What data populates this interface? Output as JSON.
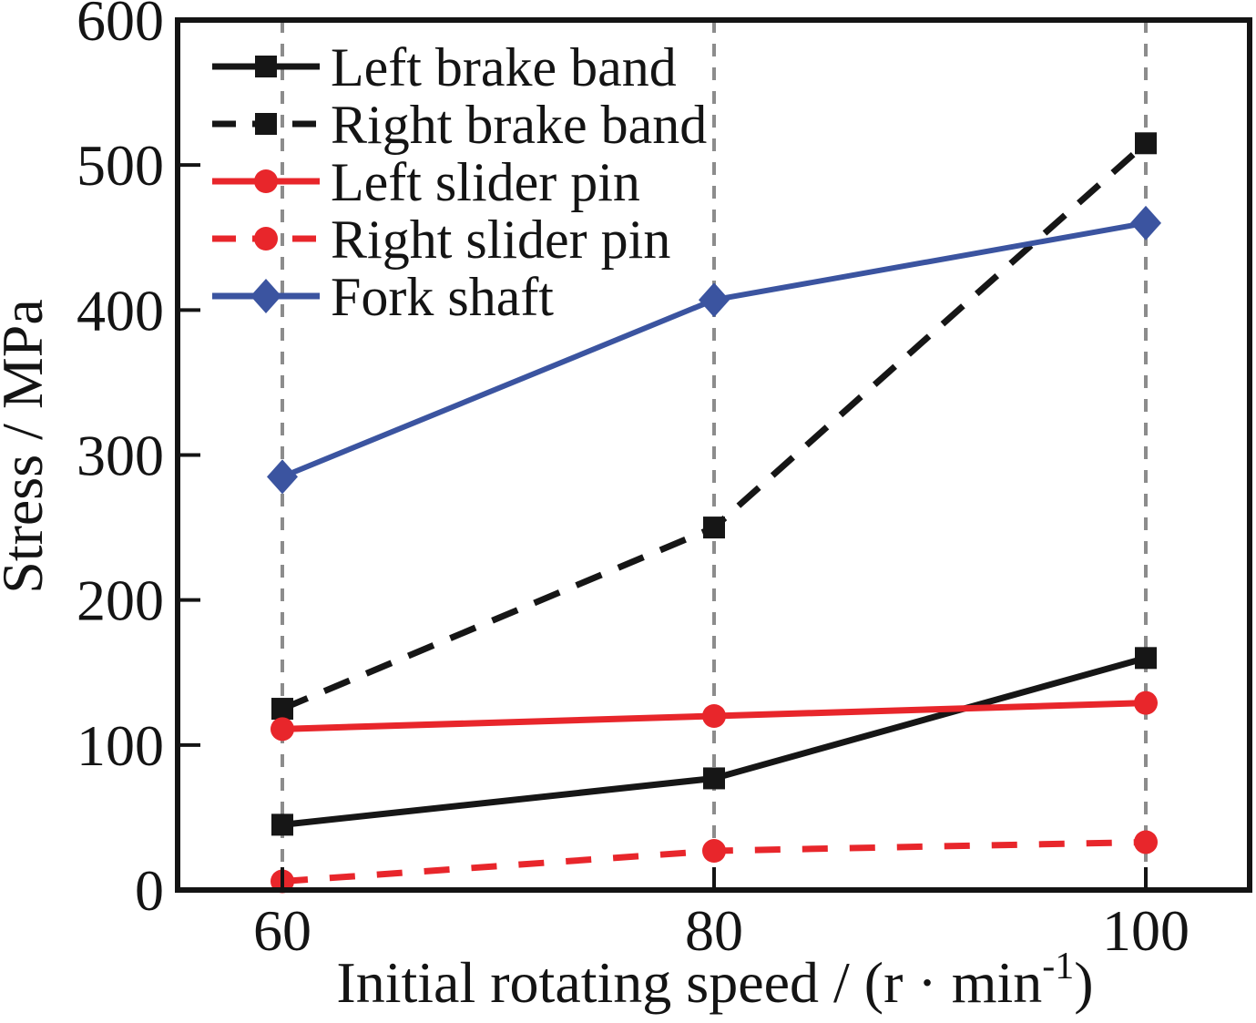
{
  "figure": {
    "background": "#ffffff"
  },
  "colors": {
    "axis": "#141414",
    "black_series": "#161616",
    "red_series": "#e8262b",
    "blue_series": "#3b54a0",
    "gridline": "#8c8c8c"
  },
  "chart_data": {
    "type": "line",
    "title": "",
    "ylabel": "Stress / MPa",
    "xlabel_main": "Initial rotating speed / (r · min",
    "xlabel_sup": "-1",
    "xlabel_end": ")",
    "x": [
      60,
      80,
      100
    ],
    "x_tick_labels": [
      "60",
      "80",
      "100"
    ],
    "y_ticks": [
      0,
      100,
      200,
      300,
      400,
      500,
      600
    ],
    "ylim": [
      0,
      600
    ],
    "xlim": [
      55,
      105
    ],
    "grid": "vertical dashed gray lines at each x tick",
    "legend_position": "top-left inside plot, no box",
    "series": [
      {
        "name": "Left brake band",
        "color": "#161616",
        "line": "solid",
        "marker": "square",
        "values": [
          45,
          77,
          160
        ]
      },
      {
        "name": "Right brake band",
        "color": "#161616",
        "line": "dashed",
        "marker": "square",
        "values": [
          125,
          250,
          515
        ]
      },
      {
        "name": "Left slider pin",
        "color": "#e8262b",
        "line": "solid",
        "marker": "circle",
        "values": [
          111,
          120,
          129
        ]
      },
      {
        "name": "Right slider pin",
        "color": "#e8262b",
        "line": "dashed",
        "marker": "circle",
        "values": [
          6,
          27,
          33
        ]
      },
      {
        "name": "Fork shaft",
        "color": "#3b54a0",
        "line": "solid",
        "marker": "diamond",
        "values": [
          285,
          407,
          460
        ]
      }
    ]
  }
}
